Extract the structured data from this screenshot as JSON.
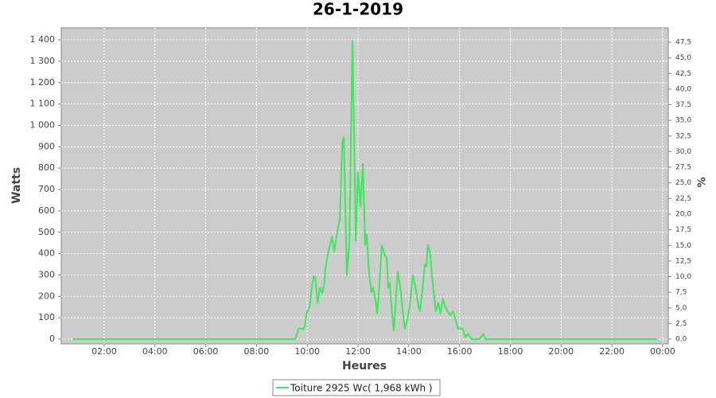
{
  "chart_data": {
    "type": "line",
    "title": "26-1-2019",
    "x_label": "Heures",
    "y_label": "Watts",
    "y2_label": "%",
    "x": [
      0.75,
      9.53,
      9.66,
      9.78,
      9.84,
      9.91,
      9.97,
      10.09,
      10.19,
      10.25,
      10.31,
      10.41,
      10.5,
      10.59,
      10.66,
      10.72,
      10.81,
      10.88,
      10.97,
      11.06,
      11.13,
      11.22,
      11.28,
      11.38,
      11.44,
      11.5,
      11.56,
      11.66,
      11.78,
      11.84,
      11.91,
      12,
      12.09,
      12.19,
      12.28,
      12.34,
      12.44,
      12.53,
      12.59,
      12.69,
      12.75,
      12.84,
      12.94,
      13.06,
      13.13,
      13.19,
      13.25,
      13.34,
      13.41,
      13.5,
      13.56,
      13.66,
      13.75,
      13.84,
      13.94,
      14.03,
      14.16,
      14.25,
      14.34,
      14.44,
      14.53,
      14.63,
      14.69,
      14.75,
      14.84,
      14.91,
      15,
      15.06,
      15.16,
      15.25,
      15.34,
      15.44,
      15.53,
      15.63,
      15.75,
      15.84,
      15.94,
      16.03,
      16.13,
      16.22,
      16.34,
      16.47,
      16.78,
      16.94,
      17.03,
      23.78
    ],
    "series": [
      {
        "name": "Toiture 2925 Wc( 1,968 kWh )",
        "color": "#3ee85a",
        "values": [
          0,
          0,
          50,
          50,
          45,
          60,
          120,
          150,
          250,
          295,
          290,
          170,
          240,
          215,
          250,
          330,
          400,
          430,
          480,
          410,
          460,
          530,
          560,
          920,
          945,
          600,
          300,
          450,
          1395,
          1000,
          460,
          780,
          620,
          820,
          440,
          490,
          300,
          220,
          240,
          180,
          120,
          250,
          440,
          390,
          380,
          240,
          265,
          120,
          40,
          200,
          315,
          250,
          140,
          50,
          90,
          150,
          300,
          250,
          180,
          130,
          220,
          350,
          340,
          440,
          400,
          300,
          200,
          130,
          170,
          120,
          190,
          150,
          130,
          110,
          130,
          90,
          50,
          50,
          50,
          10,
          25,
          0,
          0,
          25,
          0,
          0
        ]
      }
    ],
    "xlim": [
      0.31,
      24.22
    ],
    "xticks": [
      {
        "value": 2,
        "label": "02:00"
      },
      {
        "value": 4,
        "label": "04:00"
      },
      {
        "value": 6,
        "label": "06:00"
      },
      {
        "value": 8,
        "label": "08:00"
      },
      {
        "value": 10,
        "label": "10:00"
      },
      {
        "value": 12,
        "label": "12:00"
      },
      {
        "value": 14,
        "label": "14:00"
      },
      {
        "value": 16,
        "label": "16:00"
      },
      {
        "value": 18,
        "label": "18:00"
      },
      {
        "value": 20,
        "label": "20:00"
      },
      {
        "value": 22,
        "label": "22:00"
      },
      {
        "value": 24,
        "label": "00:00"
      }
    ],
    "ylim": [
      -22,
      1456
    ],
    "yticks": [
      0,
      100,
      200,
      300,
      400,
      500,
      600,
      700,
      800,
      900,
      {
        "value": 1000,
        "label": "1 000"
      },
      {
        "value": 1100,
        "label": "1 100"
      },
      {
        "value": 1200,
        "label": "1 200"
      },
      {
        "value": 1300,
        "label": "1 300"
      },
      {
        "value": 1400,
        "label": "1 400"
      }
    ],
    "y2lim": [
      -0.76,
      49.8
    ],
    "y2ticks": [
      {
        "value": 0,
        "label": "0,0"
      },
      {
        "value": 2.5,
        "label": "2,5"
      },
      {
        "value": 5,
        "label": "5,0"
      },
      {
        "value": 7.5,
        "label": "7,5"
      },
      {
        "value": 10,
        "label": "10,0"
      },
      {
        "value": 12.5,
        "label": "12,5"
      },
      {
        "value": 15,
        "label": "15,0"
      },
      {
        "value": 17.5,
        "label": "17,5"
      },
      {
        "value": 20,
        "label": "20,0"
      },
      {
        "value": 22.5,
        "label": "22,5"
      },
      {
        "value": 25,
        "label": "25,0"
      },
      {
        "value": 27.5,
        "label": "27,5"
      },
      {
        "value": 30,
        "label": "30,0"
      },
      {
        "value": 32.5,
        "label": "32,5"
      },
      {
        "value": 35,
        "label": "35,0"
      },
      {
        "value": 37.5,
        "label": "37,5"
      },
      {
        "value": 40,
        "label": "40,0"
      },
      {
        "value": 42.5,
        "label": "42,5"
      },
      {
        "value": 45,
        "label": "45,0"
      },
      {
        "value": 47.5,
        "label": "47,5"
      }
    ],
    "grid": true,
    "legend": "bottom"
  }
}
